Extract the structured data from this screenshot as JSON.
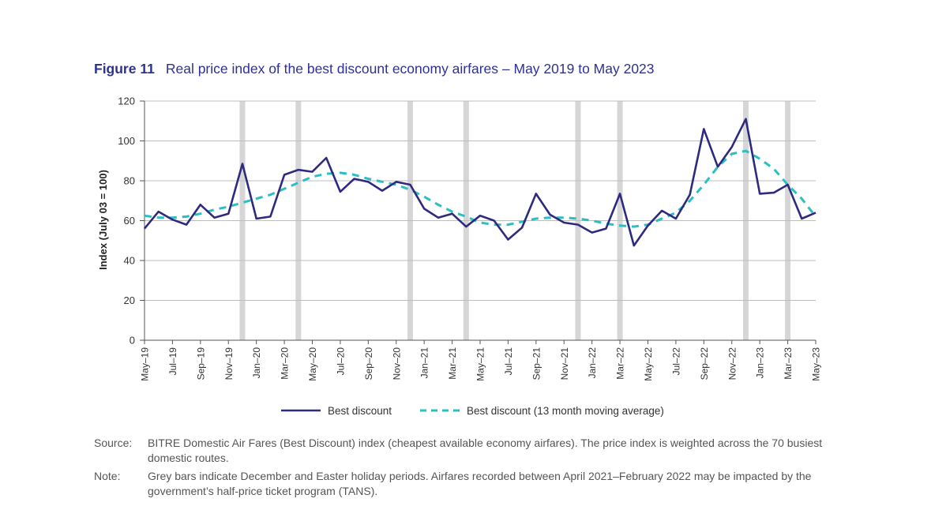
{
  "figure": {
    "number": "Figure 11",
    "title": "Real price index of the best discount economy airfares – May 2019 to May 2023"
  },
  "chart_data": {
    "type": "line",
    "title": "Real price index of the best discount economy airfares – May 2019 to May 2023",
    "ylabel": "Index (July 03 = 100)",
    "xlabel": "",
    "ylim": [
      0,
      120
    ],
    "yticks": [
      0,
      20,
      40,
      60,
      80,
      100,
      120
    ],
    "x_labels": [
      "May–19",
      "Jul–19",
      "Sep–19",
      "Nov–19",
      "Jan–20",
      "Mar–20",
      "May–20",
      "Jul–20",
      "Sep–20",
      "Nov–20",
      "Jan–21",
      "Mar–21",
      "May–21",
      "Jul–21",
      "Sep–21",
      "Nov–21",
      "Jan–22",
      "Mar–22",
      "May–22",
      "Jul–22",
      "Sep–22",
      "Nov–22",
      "Jan–23",
      "Mar–23",
      "May–23"
    ],
    "holiday_bar_month_index": [
      7,
      11,
      19,
      23,
      31,
      34,
      43,
      46
    ],
    "series": [
      {
        "name": "Best discount",
        "color": "#2e2a7f",
        "style": "solid",
        "values": [
          56,
          64.5,
          60.5,
          58,
          68,
          61.5,
          63.5,
          88.5,
          61,
          62,
          83,
          85.5,
          84.5,
          91.5,
          74.5,
          81,
          79.5,
          75,
          79.5,
          78,
          66,
          61.5,
          63.5,
          57,
          62.5,
          60,
          50.5,
          56.5,
          73.5,
          63,
          59,
          58,
          54,
          56,
          73.5,
          47.5,
          57.5,
          65,
          61,
          73,
          106,
          87,
          97,
          111,
          73.5,
          74,
          78,
          61,
          64
        ]
      },
      {
        "name": "Best discount (13 month moving average)",
        "color": "#2bbfc4",
        "style": "dashed",
        "values": [
          62.5,
          61.5,
          61.5,
          62,
          63.5,
          65.5,
          67,
          69,
          71,
          73,
          76,
          79,
          82,
          83.5,
          84,
          83,
          81,
          79.5,
          78,
          75.5,
          72,
          68,
          64.5,
          62,
          59,
          58,
          58,
          59.5,
          61,
          61.5,
          61.5,
          61,
          60,
          58.5,
          57.5,
          57,
          58,
          61,
          64,
          70,
          78,
          87,
          93.5,
          95,
          91,
          86,
          78,
          71,
          62
        ]
      }
    ]
  },
  "legend": {
    "solid_label": "Best discount",
    "dashed_label": "Best discount (13 month moving average)"
  },
  "notes": {
    "source_label": "Source:",
    "source_text": "BITRE Domestic Air Fares (Best Discount) index (cheapest available economy airfares). The price index is weighted across the 70 busiest domestic routes.",
    "note_label": "Note:",
    "note_text": "Grey bars indicate December and Easter holiday periods. Airfares recorded between April 2021–February 2022 may be impacted by the government’s half-price ticket program (TANS)."
  }
}
